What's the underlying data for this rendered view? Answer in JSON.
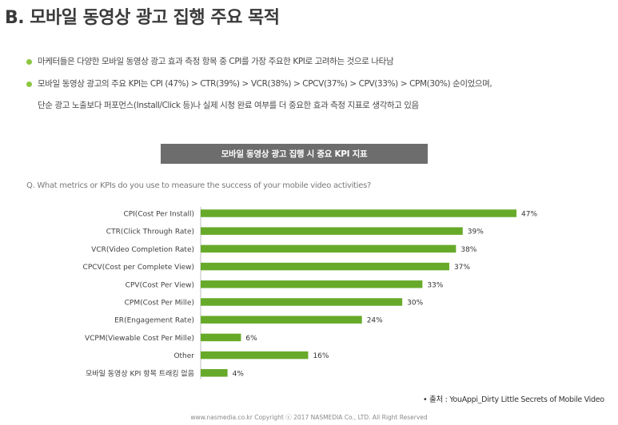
{
  "colors": {
    "bar": "#67aa2a",
    "bullet": "#8cc63f",
    "banner_bg": "#6d6d6d"
  },
  "page": {
    "title": "B. 모바일 동영상 광고 집행 주요 목적",
    "bullets": [
      "마케터들은 다양한 모바일 동영상 광고 효과 측정 항목 중 CPI를 가장 주요한 KPI로 고려하는 것으로 나타남",
      "모바일 동영상 광고의 주요 KPI는 CPI (47%) > CTR(39%) > VCR(38%) > CPCV(37%) > CPV(33%) > CPM(30%) 순이었으며,"
    ],
    "bullet2_cont": "단순 광고 노출보다 퍼포먼스(Install/Click 등)나 실제 시청 완료 여부를 더 중요한 효과 측정 지표로 생각하고 있음",
    "banner": "모바일 동영상 광고 집행 시 중요 KPI 지표",
    "question": "Q. What metrics or KPIs do you use to measure the success of your mobile video activities?",
    "source": "• 출처 : YouAppi_Dirty Little Secrets of Mobile Video",
    "footer": "www.nasmedia.co.kr Copyright ⓒ 2017 NASMEDIA Co., LTD. All Right Reserved"
  },
  "chart_data": {
    "type": "bar",
    "orientation": "horizontal",
    "categories": [
      "CPI(Cost Per Install)",
      "CTR(Click Through Rate)",
      "VCR(Video Completion Rate)",
      "CPCV(Cost per Complete View)",
      "CPV(Cost Per View)",
      "CPM(Cost Per Mille)",
      "ER(Engagement Rate)",
      "VCPM(Viewable Cost Per Mille)",
      "Other",
      "모바일 동영상 KPI 항목 트래킹 없음"
    ],
    "values": [
      47,
      39,
      38,
      37,
      33,
      30,
      24,
      6,
      16,
      4
    ],
    "value_labels": [
      "47%",
      "39%",
      "38%",
      "37%",
      "33%",
      "30%",
      "24%",
      "6%",
      "16%",
      "4%"
    ],
    "xlim": [
      0,
      47
    ],
    "grid": false,
    "legend": "none"
  }
}
